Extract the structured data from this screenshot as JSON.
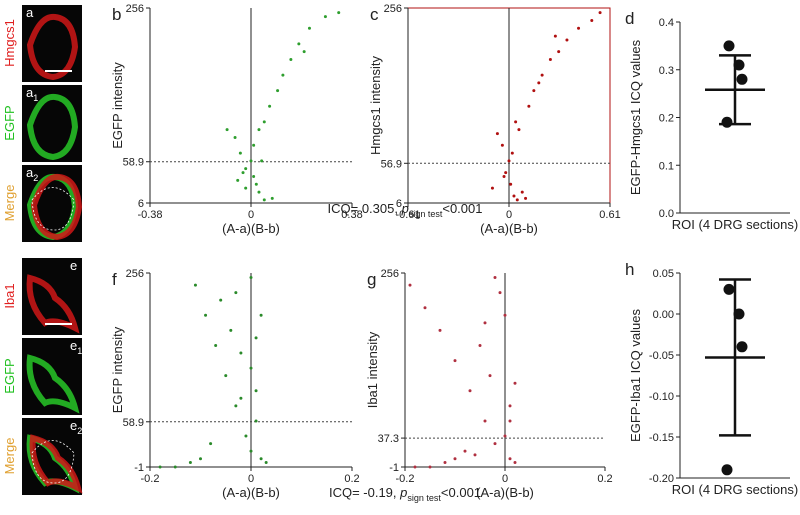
{
  "images": [
    {
      "letter": "a",
      "label": "Hmgcs1",
      "label_color": "#e02020"
    },
    {
      "letter": "a",
      "sub": "1",
      "label": "EGFP",
      "label_color": "#20c020"
    },
    {
      "letter": "a",
      "sub": "2",
      "label": "Merge",
      "label_color": "#e0a030"
    },
    {
      "letter": "e",
      "label": "Iba1",
      "label_color": "#e02020"
    },
    {
      "letter": "e",
      "sub": "1",
      "label": "EGFP",
      "label_color": "#20c020"
    },
    {
      "letter": "e",
      "sub": "2",
      "label": "Merge",
      "label_color": "#e0a030"
    }
  ],
  "chart_data": [
    {
      "type": "scatter",
      "panel": "b",
      "ylabel": "EGFP intensity",
      "xlabel": "(A-a)(B-b)",
      "color": "#2e9e2e",
      "frame": false,
      "xlim": [
        -0.38,
        0.38
      ],
      "xticks": [
        -0.38,
        0,
        0.38
      ],
      "ylim": [
        6,
        256
      ],
      "yticks": [
        6,
        58.9,
        256
      ],
      "hline": 58.9,
      "x": [
        0,
        0.01,
        -0.02,
        0.02,
        0.03,
        -0.04,
        0.05,
        -0.06,
        0.08,
        -0.09,
        0.03,
        0.07,
        0.1,
        0.12,
        0.15,
        0.18,
        0.22,
        0.28,
        0.33,
        -0.03,
        0.01,
        0.05,
        -0.02,
        0.04,
        0.2,
        -0.05
      ],
      "y": [
        60,
        40,
        50,
        30,
        20,
        70,
        10,
        90,
        12,
        100,
        100,
        130,
        150,
        170,
        190,
        210,
        230,
        245,
        250,
        45,
        80,
        110,
        25,
        60,
        200,
        35
      ],
      "annotation": {
        "text": "ICQ= 0.305, ",
        "p": "p",
        "sub": "sign test",
        "rest": "<0.001"
      }
    },
    {
      "type": "scatter",
      "panel": "c",
      "ylabel": "Hmgcs1 intensity",
      "xlabel": "(A-a)(B-b)",
      "color": "#b01010",
      "frame": true,
      "xlim": [
        -0.61,
        0.61
      ],
      "xticks": [
        -0.61,
        0,
        0.61
      ],
      "ylim": [
        6,
        256
      ],
      "yticks": [
        6,
        56.9,
        256
      ],
      "hline": 56.9,
      "x": [
        0,
        0.01,
        -0.02,
        0.03,
        0.05,
        -0.04,
        0.08,
        -0.07,
        0.1,
        0.04,
        0.12,
        0.15,
        0.2,
        0.25,
        0.3,
        0.35,
        0.42,
        0.5,
        0.55,
        -0.03,
        0.02,
        0.06,
        -0.1,
        0.18,
        0.28
      ],
      "y": [
        60,
        30,
        45,
        15,
        10,
        80,
        20,
        95,
        12,
        110,
        130,
        150,
        170,
        190,
        200,
        215,
        230,
        240,
        250,
        40,
        70,
        100,
        25,
        160,
        220
      ]
    },
    {
      "type": "dot",
      "panel": "d",
      "ylabel": "EGFP-Hmgcs1 ICQ values",
      "xlabel": "ROI (4 DRG sections)",
      "ylim": [
        0,
        0.4
      ],
      "yticks": [
        {
          "value": 0,
          "label": "0.0"
        },
        0.1,
        0.2,
        0.3,
        0.4
      ],
      "values": [
        0.35,
        0.31,
        0.28,
        0.19
      ],
      "mean": 0.258,
      "error": 0.072
    },
    {
      "type": "scatter",
      "panel": "f",
      "ylabel": "EGFP intensity",
      "xlabel": "(A-a)(B-b)",
      "color": "#2a8a2a",
      "frame": false,
      "xlim": [
        -0.2,
        0.2
      ],
      "xticks": [
        -0.2,
        0,
        0.2
      ],
      "ylim": [
        -1,
        256
      ],
      "yticks": [
        -1,
        58.9,
        256
      ],
      "hline": 58.9,
      "x": [
        -0.11,
        -0.09,
        -0.07,
        -0.05,
        -0.03,
        -0.01,
        0,
        0.01,
        0.02,
        -0.02,
        0.03,
        -0.15,
        -0.12,
        -0.06,
        -0.04,
        0.01,
        0,
        -0.02,
        -0.08,
        0.02,
        -0.18,
        -0.1,
        0,
        -0.03,
        0.01
      ],
      "y": [
        240,
        200,
        160,
        120,
        80,
        40,
        20,
        60,
        10,
        150,
        5,
        -1,
        5,
        220,
        180,
        100,
        130,
        90,
        30,
        200,
        -1,
        10,
        250,
        230,
        170
      ],
      "annotation": {
        "text": "ICQ= -0.19, ",
        "p": "p",
        "sub": "sign test",
        "rest": "<0.001"
      }
    },
    {
      "type": "scatter",
      "panel": "g",
      "ylabel": "Iba1 intensity",
      "xlabel": "(A-a)(B-b)",
      "color": "#b03040",
      "frame": false,
      "xlim": [
        -0.2,
        0.2
      ],
      "xticks": [
        -0.2,
        0,
        0.2
      ],
      "ylim": [
        -1,
        256
      ],
      "yticks": [
        -1,
        37.3,
        256
      ],
      "hline": 37.3,
      "x": [
        -0.19,
        -0.16,
        -0.13,
        -0.1,
        -0.07,
        -0.04,
        -0.02,
        0,
        0.01,
        -0.05,
        0.02,
        -0.15,
        -0.12,
        -0.08,
        -0.03,
        0.01,
        0,
        -0.02,
        -0.06,
        0.02,
        -0.18,
        -0.1,
        -0.01,
        -0.04,
        0.01
      ],
      "y": [
        240,
        210,
        180,
        140,
        100,
        60,
        30,
        40,
        10,
        160,
        5,
        -1,
        5,
        20,
        120,
        80,
        200,
        250,
        15,
        110,
        -1,
        10,
        230,
        190,
        60
      ]
    },
    {
      "type": "dot",
      "panel": "h",
      "ylabel": "EGFP-Iba1 ICQ values",
      "xlabel": "ROI (4 DRG sections)",
      "ylim": [
        -0.2,
        0.05
      ],
      "yticks": [
        0.05,
        {
          "value": 0,
          "label": "0.00"
        },
        {
          "value": -0.05,
          "label": "-0.05"
        },
        {
          "value": -0.1,
          "label": "-0.10"
        },
        {
          "value": -0.15,
          "label": "-0.15"
        },
        {
          "value": -0.2,
          "label": "-0.20"
        }
      ],
      "values": [
        0.03,
        0,
        -0.04,
        -0.19
      ],
      "mean": -0.053,
      "error": 0.095
    }
  ]
}
